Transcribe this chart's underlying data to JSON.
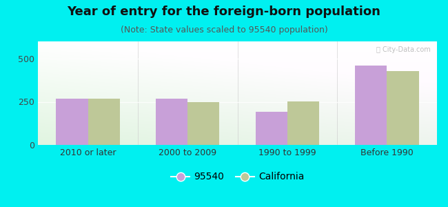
{
  "title": "Year of entry for the foreign-born population",
  "subtitle": "(Note: State values scaled to 95540 population)",
  "categories": [
    "2010 or later",
    "2000 to 2009",
    "1990 to 1999",
    "Before 1990"
  ],
  "values_95540": [
    268,
    270,
    193,
    462
  ],
  "values_california": [
    268,
    248,
    252,
    430
  ],
  "bar_color_95540": "#c8a0d8",
  "bar_color_california": "#bec898",
  "background_outer": "#00f0f0",
  "ylim": [
    0,
    600
  ],
  "yticks": [
    0,
    250,
    500
  ],
  "bar_width": 0.32,
  "legend_label_95540": "95540",
  "legend_label_california": "California",
  "title_fontsize": 13,
  "subtitle_fontsize": 9,
  "tick_fontsize": 9,
  "legend_fontsize": 10,
  "watermark": "Ⓢ City-Data.com"
}
